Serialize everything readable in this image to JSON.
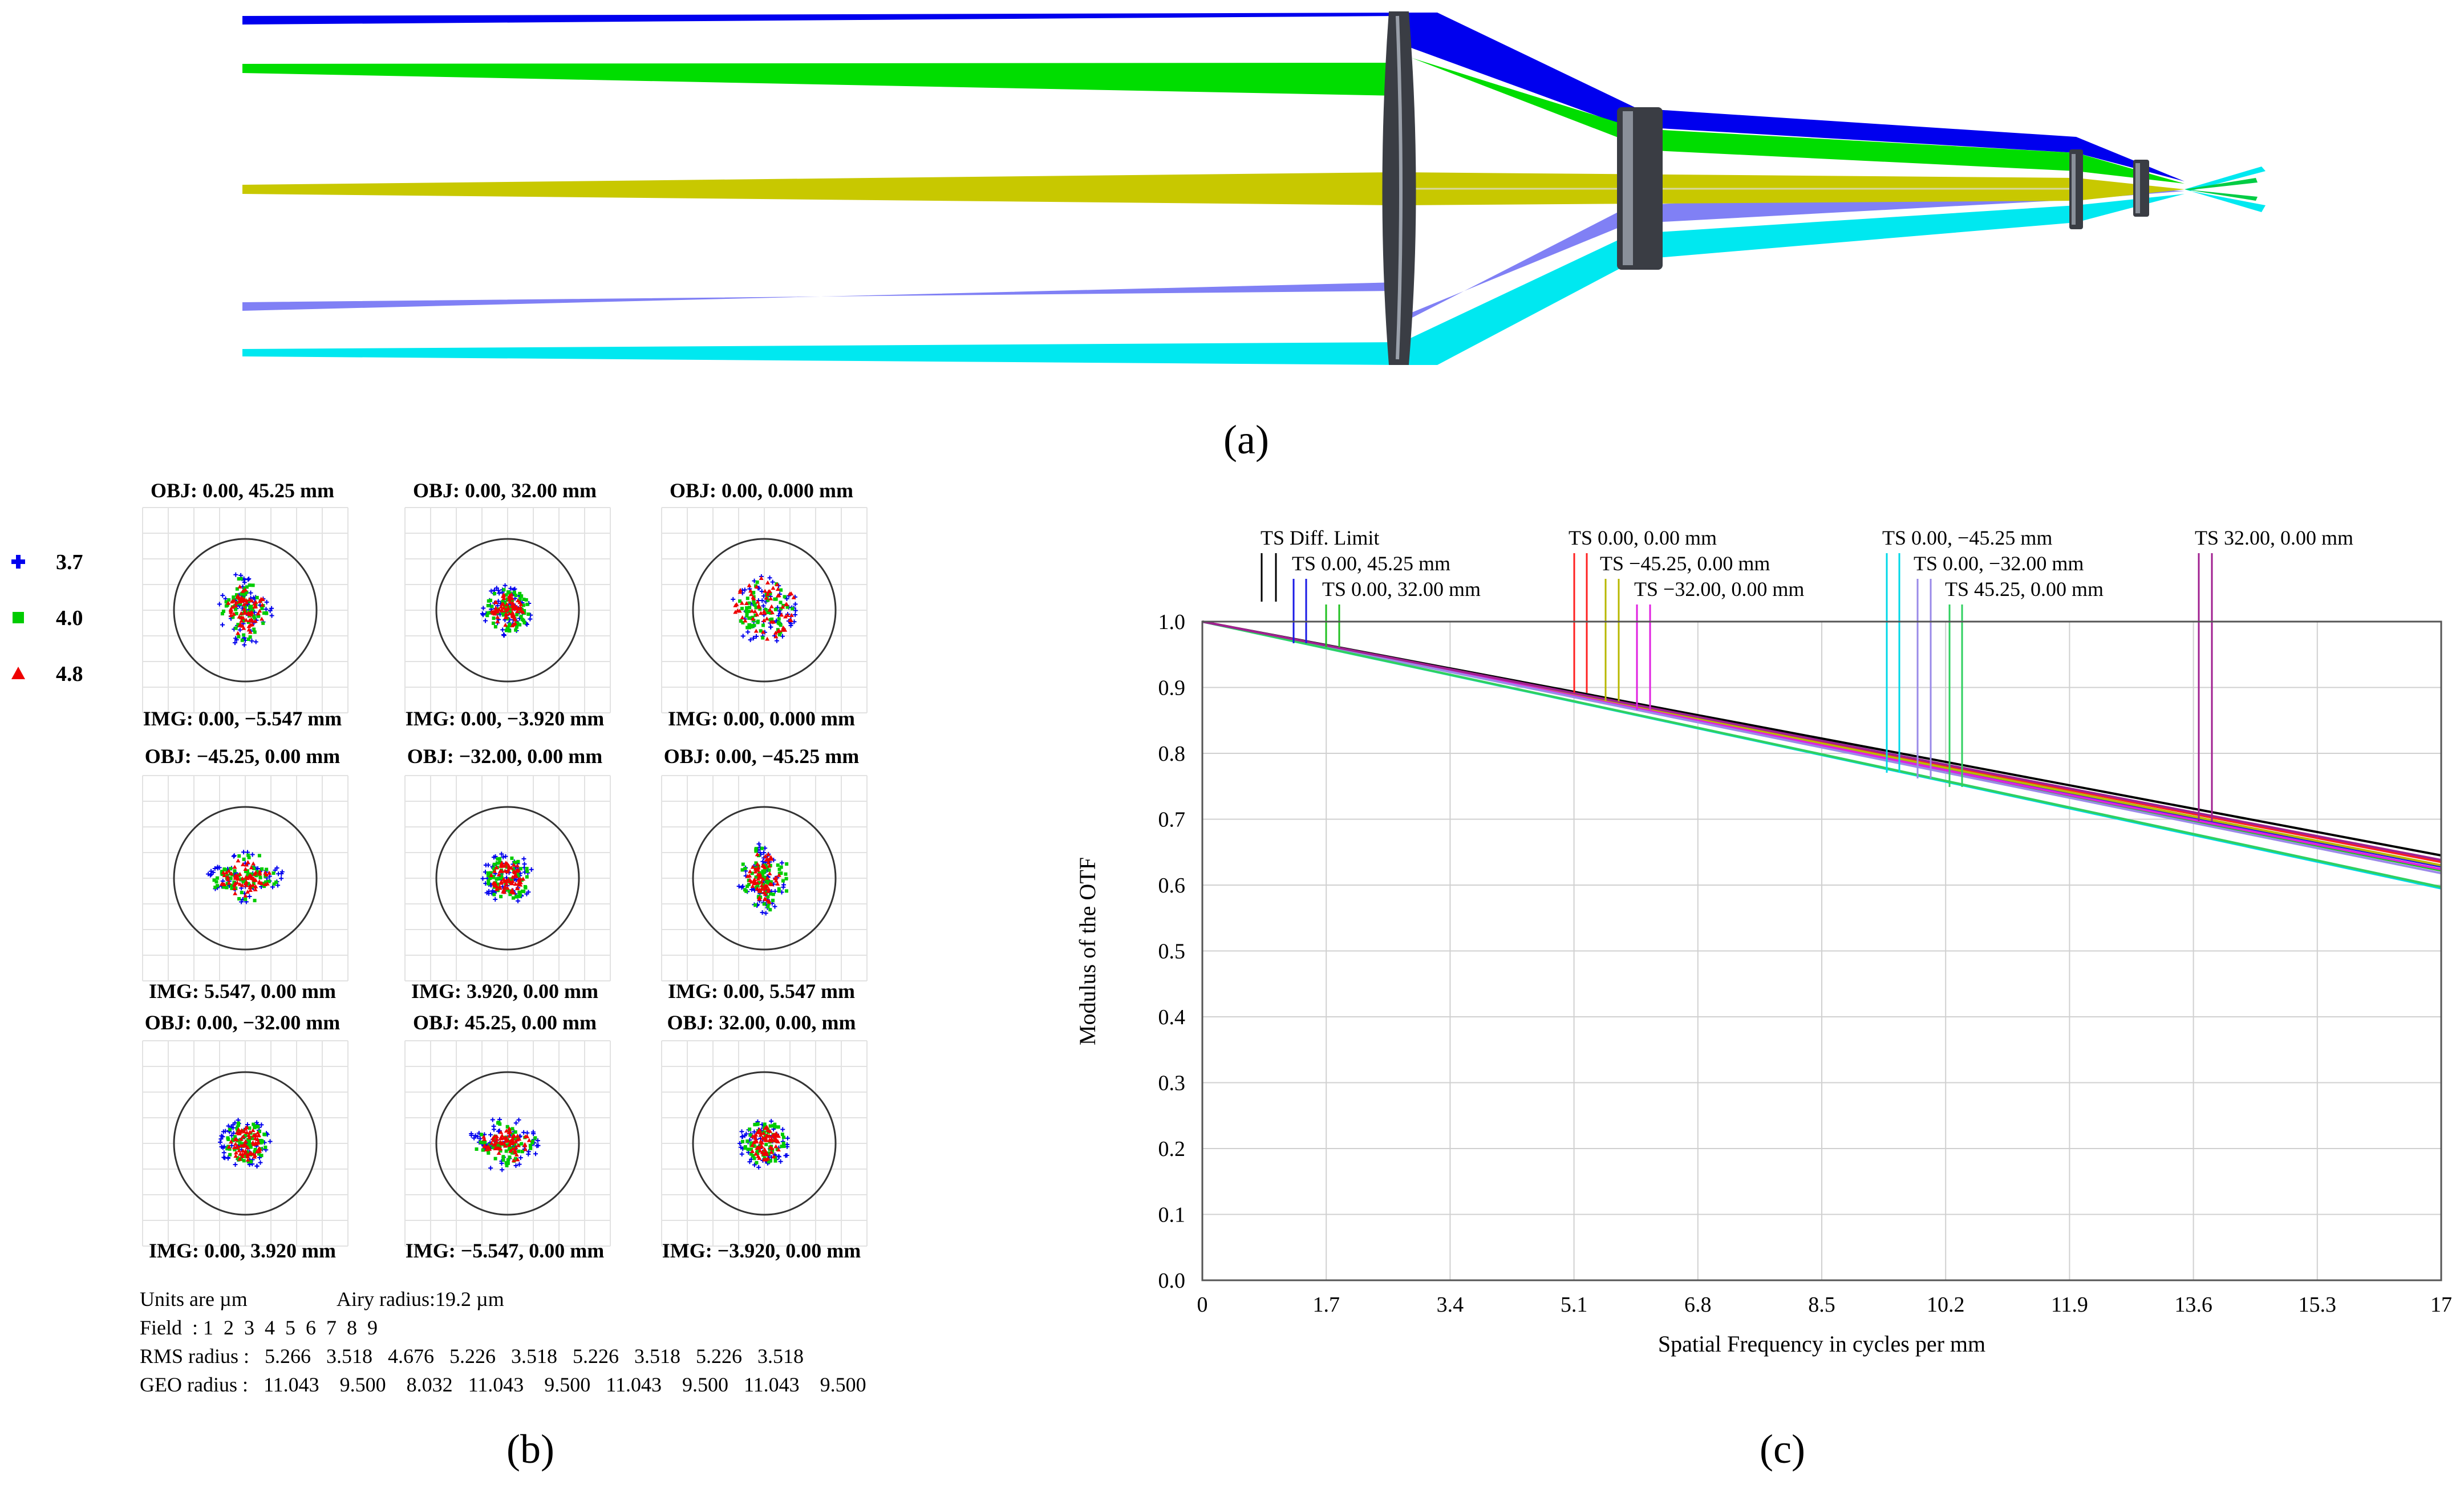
{
  "panel_labels": {
    "a": "(a)",
    "b": "(b)",
    "c": "(c)"
  },
  "ray_trace": {
    "colors": {
      "blue": "#0000ee",
      "green": "#00dd00",
      "yellow": "#c8c800",
      "violet": "#8080f5",
      "cyan": "#00e8f0",
      "lens": "#3a3d44"
    }
  },
  "spot": {
    "legend": [
      {
        "label": "3.7",
        "color": "#0000ee",
        "marker": "plus"
      },
      {
        "label": "4.0",
        "color": "#00cc00",
        "marker": "square"
      },
      {
        "label": "4.8",
        "color": "#ee0000",
        "marker": "triangle"
      }
    ],
    "cells": [
      {
        "obj": "OBJ: 0.00, 45.25 mm",
        "img": "IMG: 0.00, −5.547 mm",
        "shape": "vertical"
      },
      {
        "obj": "OBJ: 0.00, 32.00 mm",
        "img": "IMG: 0.00, −3.920 mm",
        "shape": "triangle"
      },
      {
        "obj": "OBJ: 0.00, 0.000 mm",
        "img": "IMG: 0.00, 0.000  mm",
        "shape": "disc"
      },
      {
        "obj": "OBJ: −45.25, 0.00 mm",
        "img": "IMG: 5.547, 0.00 mm",
        "shape": "horizontal"
      },
      {
        "obj": "OBJ: −32.00, 0.00 mm",
        "img": "IMG: 3.920, 0.00 mm",
        "shape": "triangle-left"
      },
      {
        "obj": "OBJ: 0.00, −45.25 mm",
        "img": "IMG: 0.00, 5.547 mm",
        "shape": "vertical"
      },
      {
        "obj": "OBJ: 0.00, −32.00 mm",
        "img": "IMG: 0.00, 3.920 mm",
        "shape": "triangle-down"
      },
      {
        "obj": "OBJ: 45.25, 0.00 mm",
        "img": "IMG: −5.547, 0.00 mm",
        "shape": "horizontal"
      },
      {
        "obj": "OBJ: 32.00, 0.00, mm",
        "img": "IMG: −3.920, 0.00 mm",
        "shape": "triangle-right"
      }
    ],
    "units": "Units are µm",
    "airy": "Airy radius:19.2 µm",
    "field": "Field  : 1  2  3  4  5  6  7  8  9",
    "rms": "RMS radius :   5.266   3.518   4.676   5.226   3.518   5.226   3.518   5.226   3.518",
    "geo": "GEO radius :   11.043    9.500    8.032   11.043    9.500   11.043    9.500   11.043    9.500"
  },
  "chart_data": {
    "type": "line",
    "xlabel": "Spatial Frequency in cycles per mm",
    "ylabel": "Modulus of the OTF",
    "xlim": [
      0,
      17
    ],
    "ylim": [
      0,
      1.0
    ],
    "x_ticks": [
      0,
      1.7,
      3.4,
      5.1,
      6.8,
      8.5,
      10.2,
      11.9,
      13.6,
      15.3,
      17
    ],
    "x_tick_labels": [
      "0",
      "1.7",
      "3.4",
      "5.1",
      "6.8",
      "8.5",
      "10.2",
      "11.9",
      "13.6",
      "15.3",
      "17"
    ],
    "y_ticks": [
      0,
      0.1,
      0.2,
      0.3,
      0.4,
      0.5,
      0.6,
      0.7,
      0.8,
      0.9,
      1.0
    ],
    "y_tick_labels": [
      "0.0",
      "0.1",
      "0.2",
      "0.3",
      "0.4",
      "0.5",
      "0.6",
      "0.7",
      "0.8",
      "0.9",
      "1.0"
    ],
    "grid": true,
    "series": [
      {
        "name": "TS Diff. Limit",
        "color": "#000000",
        "x": [
          0,
          17
        ],
        "y": [
          1.0,
          0.645
        ]
      },
      {
        "name": "TS 0.00, 45.25 mm",
        "color": "#1a1ae6",
        "x": [
          0,
          17
        ],
        "y": [
          1.0,
          0.628
        ]
      },
      {
        "name": "TS 0.00, 32.00 mm",
        "color": "#20c020",
        "x": [
          0,
          17
        ],
        "y": [
          1.0,
          0.622
        ]
      },
      {
        "name": "TS 0.00, 0.00 mm",
        "color": "#ff2020",
        "x": [
          0,
          17
        ],
        "y": [
          1.0,
          0.635
        ]
      },
      {
        "name": "TS −45.25, 0.00 mm",
        "color": "#b8b800",
        "x": [
          0,
          17
        ],
        "y": [
          1.0,
          0.63
        ]
      },
      {
        "name": "TS −32.00, 0.00 mm",
        "color": "#e020e0",
        "x": [
          0,
          17
        ],
        "y": [
          1.0,
          0.624
        ]
      },
      {
        "name": "TS 0.00, −45.25 mm",
        "color": "#00d8e8",
        "x": [
          0,
          17
        ],
        "y": [
          1.0,
          0.595
        ]
      },
      {
        "name": "TS 0.00, −32.00 mm",
        "color": "#9a8ae8",
        "x": [
          0,
          17
        ],
        "y": [
          1.0,
          0.618
        ]
      },
      {
        "name": "TS 45.25, 0.00 mm",
        "color": "#30d060",
        "x": [
          0,
          17
        ],
        "y": [
          1.0,
          0.597
        ]
      },
      {
        "name": "TS 32.00, 0.00 mm",
        "color": "#a02090",
        "x": [
          0,
          17
        ],
        "y": [
          1.0,
          0.638
        ]
      }
    ]
  }
}
